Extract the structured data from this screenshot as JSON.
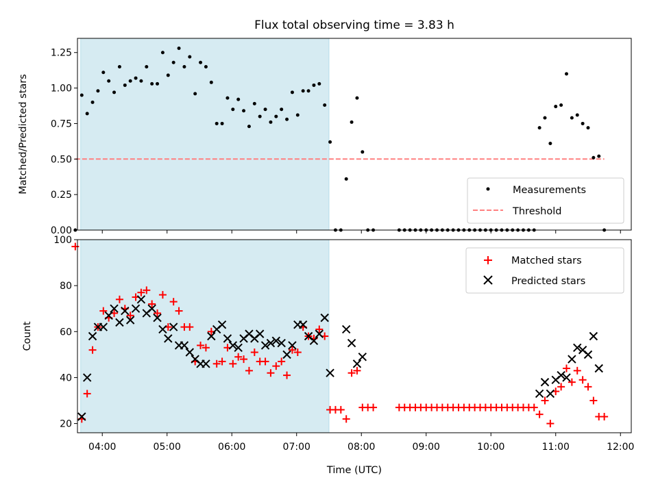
{
  "chart_data": [
    {
      "type": "scatter",
      "title": "Flux total observing time = 3.83 h",
      "xlabel": "",
      "ylabel": "Matched/Predicted stars",
      "xlim": [
        "03:37",
        "12:10"
      ],
      "ylim": [
        0,
        1.35
      ],
      "yticks": [
        "0.00",
        "0.25",
        "0.50",
        "0.75",
        "1.00",
        "1.25"
      ],
      "shaded_interval": [
        "03:40",
        "07:30"
      ],
      "legend": {
        "placement": "bottom-right",
        "entries": [
          "Measurements",
          "Threshold"
        ]
      },
      "threshold": {
        "name": "Threshold",
        "value": 0.5,
        "x": [
          "03:35",
          "11:45"
        ],
        "color": "#ff8080"
      },
      "series": [
        {
          "name": "Measurements",
          "marker": "dot",
          "color": "#000000",
          "points": [
            [
              "03:35",
              0.0
            ],
            [
              "03:41",
              0.95
            ],
            [
              "03:46",
              0.82
            ],
            [
              "03:51",
              0.9
            ],
            [
              "03:56",
              0.98
            ],
            [
              "04:01",
              1.11
            ],
            [
              "04:06",
              1.05
            ],
            [
              "04:11",
              0.97
            ],
            [
              "04:16",
              1.15
            ],
            [
              "04:21",
              1.02
            ],
            [
              "04:26",
              1.05
            ],
            [
              "04:31",
              1.07
            ],
            [
              "04:36",
              1.05
            ],
            [
              "04:41",
              1.15
            ],
            [
              "04:46",
              1.03
            ],
            [
              "04:51",
              1.03
            ],
            [
              "04:56",
              1.25
            ],
            [
              "05:01",
              1.09
            ],
            [
              "05:06",
              1.18
            ],
            [
              "05:11",
              1.28
            ],
            [
              "05:16",
              1.15
            ],
            [
              "05:21",
              1.22
            ],
            [
              "05:26",
              0.96
            ],
            [
              "05:31",
              1.18
            ],
            [
              "05:36",
              1.15
            ],
            [
              "05:41",
              1.04
            ],
            [
              "05:46",
              0.75
            ],
            [
              "05:51",
              0.75
            ],
            [
              "05:56",
              0.93
            ],
            [
              "06:01",
              0.85
            ],
            [
              "06:06",
              0.92
            ],
            [
              "06:11",
              0.84
            ],
            [
              "06:16",
              0.73
            ],
            [
              "06:21",
              0.89
            ],
            [
              "06:26",
              0.8
            ],
            [
              "06:31",
              0.85
            ],
            [
              "06:36",
              0.76
            ],
            [
              "06:41",
              0.8
            ],
            [
              "06:46",
              0.85
            ],
            [
              "06:51",
              0.78
            ],
            [
              "06:56",
              0.97
            ],
            [
              "07:01",
              0.81
            ],
            [
              "07:06",
              0.98
            ],
            [
              "07:11",
              0.98
            ],
            [
              "07:16",
              1.02
            ],
            [
              "07:21",
              1.03
            ],
            [
              "07:26",
              0.88
            ],
            [
              "07:31",
              0.62
            ],
            [
              "07:36",
              0.0
            ],
            [
              "07:41",
              0.0
            ],
            [
              "07:46",
              0.36
            ],
            [
              "07:51",
              0.76
            ],
            [
              "07:56",
              0.93
            ],
            [
              "08:01",
              0.55
            ],
            [
              "08:06",
              0.0
            ],
            [
              "08:11",
              0.0
            ],
            [
              "08:35",
              0.0
            ],
            [
              "08:40",
              0.0
            ],
            [
              "08:45",
              0.0
            ],
            [
              "08:50",
              0.0
            ],
            [
              "08:55",
              0.0
            ],
            [
              "09:00",
              0.0
            ],
            [
              "09:05",
              0.0
            ],
            [
              "09:10",
              0.0
            ],
            [
              "09:15",
              0.0
            ],
            [
              "09:20",
              0.0
            ],
            [
              "09:25",
              0.0
            ],
            [
              "09:30",
              0.0
            ],
            [
              "09:35",
              0.0
            ],
            [
              "09:40",
              0.0
            ],
            [
              "09:45",
              0.0
            ],
            [
              "09:50",
              0.0
            ],
            [
              "09:55",
              0.0
            ],
            [
              "10:00",
              0.0
            ],
            [
              "10:05",
              0.0
            ],
            [
              "10:10",
              0.0
            ],
            [
              "10:15",
              0.0
            ],
            [
              "10:20",
              0.0
            ],
            [
              "10:25",
              0.0
            ],
            [
              "10:30",
              0.0
            ],
            [
              "10:35",
              0.0
            ],
            [
              "10:40",
              0.0
            ],
            [
              "10:45",
              0.72
            ],
            [
              "10:50",
              0.79
            ],
            [
              "10:55",
              0.61
            ],
            [
              "11:00",
              0.87
            ],
            [
              "11:05",
              0.88
            ],
            [
              "11:10",
              1.1
            ],
            [
              "11:15",
              0.79
            ],
            [
              "11:20",
              0.81
            ],
            [
              "11:25",
              0.75
            ],
            [
              "11:30",
              0.72
            ],
            [
              "11:35",
              0.51
            ],
            [
              "11:40",
              0.52
            ],
            [
              "11:45",
              0.0
            ]
          ]
        }
      ]
    },
    {
      "type": "scatter",
      "title": "",
      "xlabel": "Time (UTC)",
      "ylabel": "Count",
      "xlim": [
        "03:37",
        "12:10"
      ],
      "ylim": [
        16,
        100
      ],
      "yticks": [
        "20",
        "40",
        "60",
        "80",
        "100"
      ],
      "xticks": [
        "04:00",
        "05:00",
        "06:00",
        "07:00",
        "08:00",
        "09:00",
        "10:00",
        "11:00",
        "12:00"
      ],
      "shaded_interval": [
        "03:40",
        "07:30"
      ],
      "legend": {
        "placement": "top-right",
        "entries": [
          "Matched stars",
          "Predicted stars"
        ]
      },
      "series": [
        {
          "name": "Matched stars",
          "marker": "+",
          "color": "#ff0000",
          "points": [
            [
              "03:35",
              97
            ],
            [
              "03:41",
              22
            ],
            [
              "03:46",
              33
            ],
            [
              "03:51",
              52
            ],
            [
              "03:56",
              62
            ],
            [
              "04:01",
              69
            ],
            [
              "04:06",
              66
            ],
            [
              "04:11",
              68
            ],
            [
              "04:16",
              74
            ],
            [
              "04:21",
              70
            ],
            [
              "04:26",
              67
            ],
            [
              "04:31",
              75
            ],
            [
              "04:36",
              77
            ],
            [
              "04:41",
              78
            ],
            [
              "04:46",
              72
            ],
            [
              "04:51",
              68
            ],
            [
              "04:56",
              76
            ],
            [
              "05:01",
              62
            ],
            [
              "05:06",
              73
            ],
            [
              "05:11",
              69
            ],
            [
              "05:16",
              62
            ],
            [
              "05:21",
              62
            ],
            [
              "05:26",
              47
            ],
            [
              "05:31",
              54
            ],
            [
              "05:36",
              53
            ],
            [
              "05:41",
              60
            ],
            [
              "05:46",
              46
            ],
            [
              "05:51",
              47
            ],
            [
              "05:56",
              53
            ],
            [
              "06:01",
              46
            ],
            [
              "06:06",
              49
            ],
            [
              "06:11",
              48
            ],
            [
              "06:16",
              43
            ],
            [
              "06:21",
              51
            ],
            [
              "06:26",
              47
            ],
            [
              "06:31",
              47
            ],
            [
              "06:36",
              42
            ],
            [
              "06:41",
              45
            ],
            [
              "06:46",
              47
            ],
            [
              "06:51",
              41
            ],
            [
              "06:56",
              52
            ],
            [
              "07:01",
              51
            ],
            [
              "07:06",
              62
            ],
            [
              "07:11",
              58
            ],
            [
              "07:16",
              57
            ],
            [
              "07:21",
              61
            ],
            [
              "07:26",
              58
            ],
            [
              "07:31",
              26
            ],
            [
              "07:36",
              26
            ],
            [
              "07:41",
              26
            ],
            [
              "07:46",
              22
            ],
            [
              "07:51",
              42
            ],
            [
              "07:56",
              43
            ],
            [
              "08:01",
              27
            ],
            [
              "08:06",
              27
            ],
            [
              "08:11",
              27
            ],
            [
              "08:35",
              27
            ],
            [
              "08:40",
              27
            ],
            [
              "08:45",
              27
            ],
            [
              "08:50",
              27
            ],
            [
              "08:55",
              27
            ],
            [
              "09:00",
              27
            ],
            [
              "09:05",
              27
            ],
            [
              "09:10",
              27
            ],
            [
              "09:15",
              27
            ],
            [
              "09:20",
              27
            ],
            [
              "09:25",
              27
            ],
            [
              "09:30",
              27
            ],
            [
              "09:35",
              27
            ],
            [
              "09:40",
              27
            ],
            [
              "09:45",
              27
            ],
            [
              "09:50",
              27
            ],
            [
              "09:55",
              27
            ],
            [
              "10:00",
              27
            ],
            [
              "10:05",
              27
            ],
            [
              "10:10",
              27
            ],
            [
              "10:15",
              27
            ],
            [
              "10:20",
              27
            ],
            [
              "10:25",
              27
            ],
            [
              "10:30",
              27
            ],
            [
              "10:35",
              27
            ],
            [
              "10:40",
              27
            ],
            [
              "10:45",
              24
            ],
            [
              "10:50",
              30
            ],
            [
              "10:55",
              20
            ],
            [
              "11:00",
              34
            ],
            [
              "11:05",
              36
            ],
            [
              "11:10",
              44
            ],
            [
              "11:15",
              38
            ],
            [
              "11:20",
              43
            ],
            [
              "11:25",
              39
            ],
            [
              "11:30",
              36
            ],
            [
              "11:35",
              30
            ],
            [
              "11:40",
              23
            ],
            [
              "11:45",
              23
            ]
          ]
        },
        {
          "name": "Predicted stars",
          "marker": "x",
          "color": "#000000",
          "points": [
            [
              "03:41",
              23
            ],
            [
              "03:46",
              40
            ],
            [
              "03:51",
              58
            ],
            [
              "03:56",
              62
            ],
            [
              "04:01",
              62
            ],
            [
              "04:06",
              67
            ],
            [
              "04:11",
              70
            ],
            [
              "04:16",
              64
            ],
            [
              "04:21",
              69
            ],
            [
              "04:26",
              65
            ],
            [
              "04:31",
              70
            ],
            [
              "04:36",
              74
            ],
            [
              "04:41",
              68
            ],
            [
              "04:46",
              70
            ],
            [
              "04:51",
              66
            ],
            [
              "04:56",
              61
            ],
            [
              "05:01",
              57
            ],
            [
              "05:06",
              62
            ],
            [
              "05:11",
              54
            ],
            [
              "05:16",
              54
            ],
            [
              "05:21",
              51
            ],
            [
              "05:26",
              48
            ],
            [
              "05:31",
              46
            ],
            [
              "05:36",
              46
            ],
            [
              "05:41",
              58
            ],
            [
              "05:46",
              61
            ],
            [
              "05:51",
              63
            ],
            [
              "05:56",
              57
            ],
            [
              "06:01",
              54
            ],
            [
              "06:06",
              53
            ],
            [
              "06:11",
              57
            ],
            [
              "06:16",
              59
            ],
            [
              "06:21",
              57
            ],
            [
              "06:26",
              59
            ],
            [
              "06:31",
              54
            ],
            [
              "06:36",
              55
            ],
            [
              "06:41",
              56
            ],
            [
              "06:46",
              55
            ],
            [
              "06:51",
              50
            ],
            [
              "06:56",
              54
            ],
            [
              "07:01",
              63
            ],
            [
              "07:06",
              63
            ],
            [
              "07:11",
              58
            ],
            [
              "07:16",
              56
            ],
            [
              "07:21",
              59
            ],
            [
              "07:26",
              66
            ],
            [
              "07:31",
              42
            ],
            [
              "07:46",
              61
            ],
            [
              "07:51",
              55
            ],
            [
              "07:56",
              46
            ],
            [
              "08:01",
              49
            ],
            [
              "10:45",
              33
            ],
            [
              "10:50",
              38
            ],
            [
              "10:55",
              33
            ],
            [
              "11:00",
              39
            ],
            [
              "11:05",
              41
            ],
            [
              "11:10",
              40
            ],
            [
              "11:15",
              48
            ],
            [
              "11:20",
              53
            ],
            [
              "11:25",
              52
            ],
            [
              "11:30",
              50
            ],
            [
              "11:35",
              58
            ],
            [
              "11:40",
              44
            ]
          ]
        }
      ]
    }
  ]
}
